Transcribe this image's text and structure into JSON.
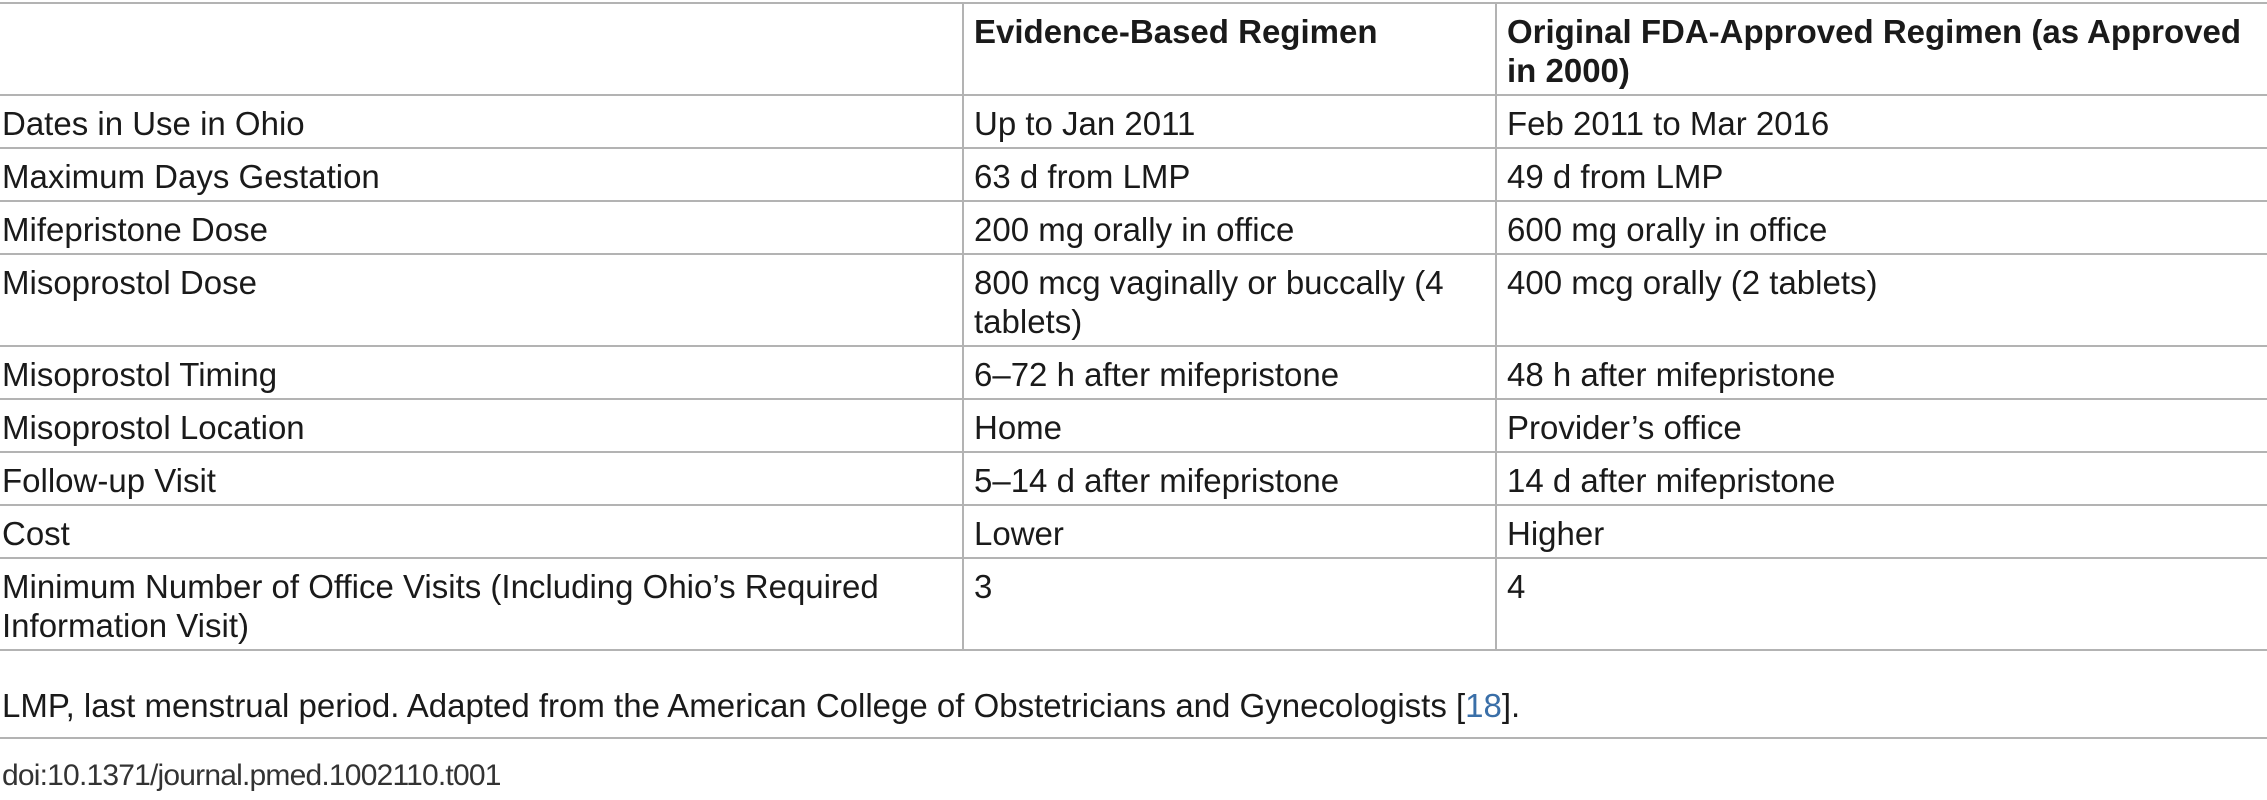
{
  "table": {
    "headers": [
      "",
      "Evidence-Based Regimen",
      "Original FDA-Approved Regimen (as Approved in 2000)"
    ],
    "rows": [
      [
        "Dates in Use in Ohio",
        "Up to Jan 2011",
        "Feb 2011 to Mar 2016"
      ],
      [
        "Maximum Days Gestation",
        "63 d from LMP",
        "49 d from LMP"
      ],
      [
        "Mifepristone Dose",
        "200 mg orally in office",
        "600 mg orally in office"
      ],
      [
        "Misoprostol Dose",
        "800 mcg vaginally or buccally (4 tablets)",
        "400 mcg orally (2 tablets)"
      ],
      [
        "Misoprostol Timing",
        "6–72 h after mifepristone",
        "48 h after mifepristone"
      ],
      [
        "Misoprostol Location",
        "Home",
        "Provider’s office"
      ],
      [
        "Follow-up Visit",
        "5–14 d after mifepristone",
        "14 d after mifepristone"
      ],
      [
        "Cost",
        "Lower",
        "Higher"
      ],
      [
        "Minimum Number of Office Visits (Including Ohio’s Required Information Visit)",
        "3",
        "4"
      ]
    ]
  },
  "footnote": {
    "text_before": "LMP, last menstrual period. Adapted from the American College of Obstetricians and Gynecologists [",
    "ref": "18",
    "text_after": "]."
  },
  "doi": "doi:10.1371/journal.pmed.1002110.t001",
  "colors": {
    "rule": "#b3b3b3",
    "link": "#3a6fa8",
    "text": "#1a1a1a"
  }
}
